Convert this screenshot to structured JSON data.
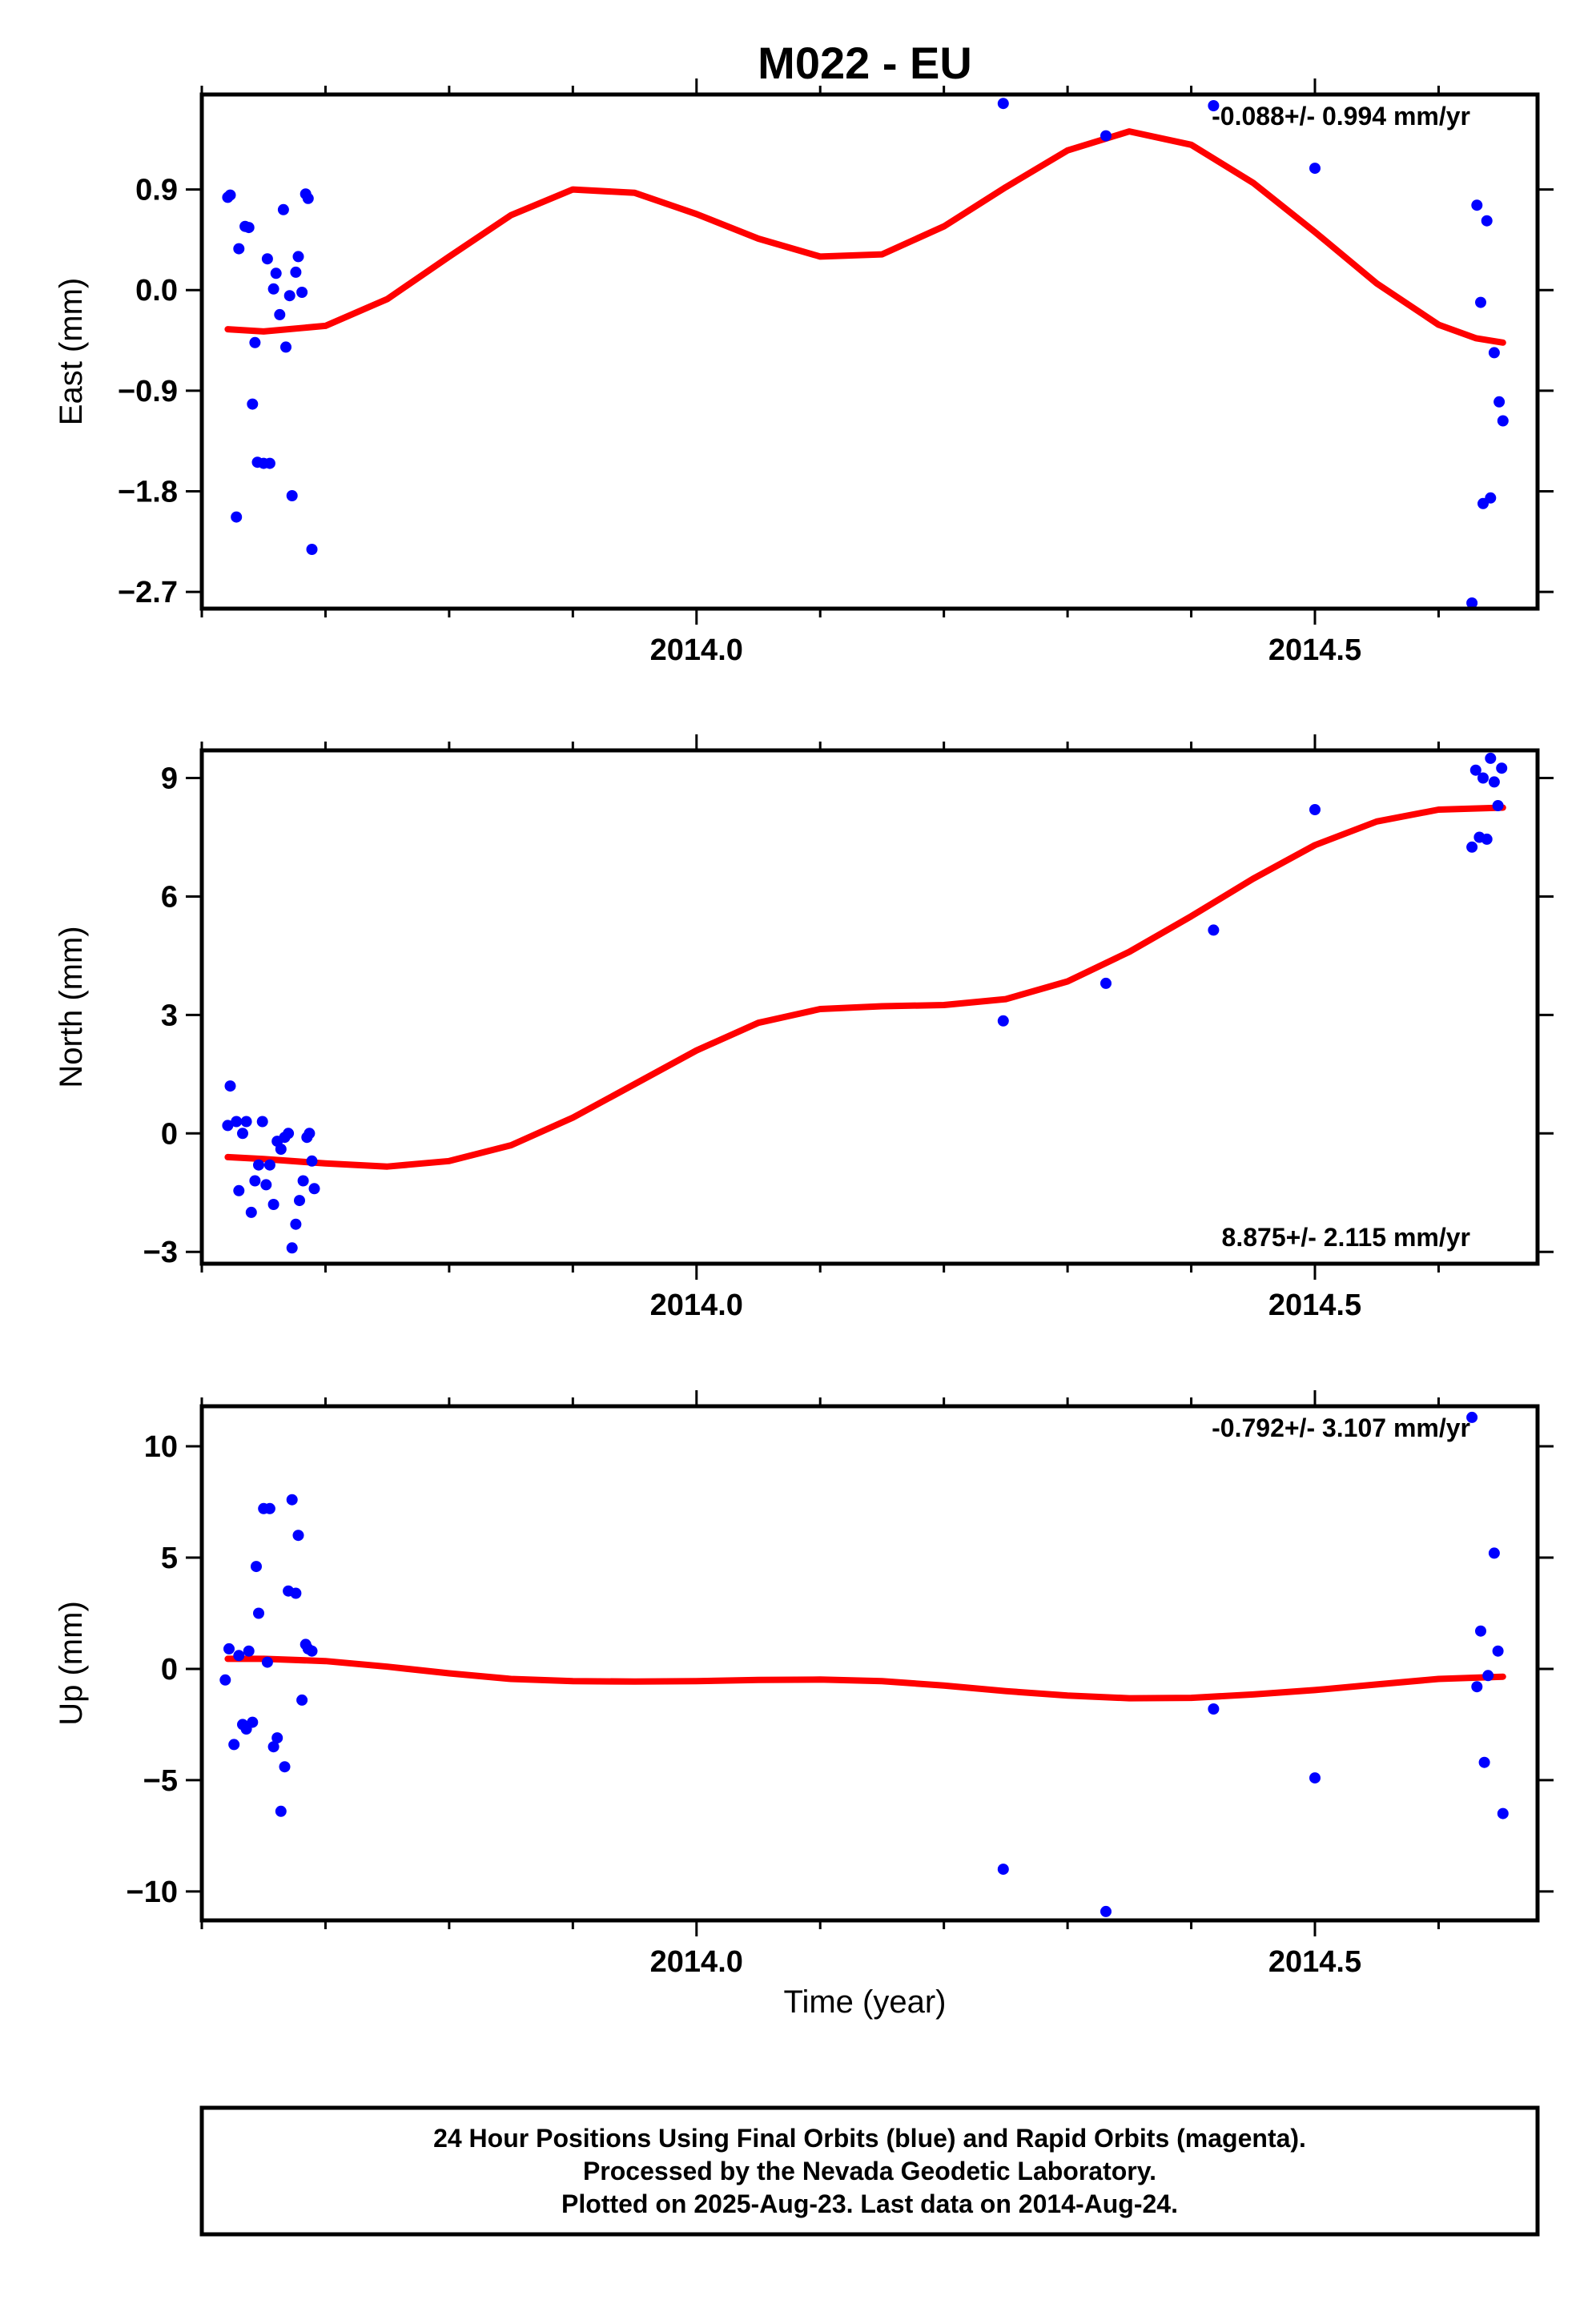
{
  "figure": {
    "title": "M022 - EU",
    "xlabel": "Time (year)",
    "footer_lines": [
      "24 Hour Positions Using Final Orbits (blue) and Rapid Orbits (magenta).",
      "Processed by the Nevada Geodetic Laboratory.",
      "Plotted on 2025-Aug-23. Last data on 2014-Aug-24."
    ]
  },
  "colors": {
    "points": "#0000ff",
    "fit": "#ff0000",
    "frame": "#000000"
  },
  "chart_data": [
    {
      "type": "scatter",
      "ylabel": "East (mm)",
      "rate_label": "-0.088+/- 0.994 mm/yr",
      "rate_position": "top-right",
      "xlim": [
        2013.6,
        2014.68
      ],
      "ylim": [
        -2.85,
        1.75
      ],
      "xticks": [
        2014.0,
        2014.5
      ],
      "xtick_labels": [
        "2014.0",
        "2014.5"
      ],
      "yticks": [
        0.9,
        0.0,
        -0.9,
        -1.8,
        -2.7
      ],
      "ytick_labels": [
        "0.9",
        "0.0",
        "−0.9",
        "−1.8",
        "−2.7"
      ],
      "points": [
        [
          2013.621,
          0.83
        ],
        [
          2013.623,
          0.85
        ],
        [
          2013.628,
          -2.03
        ],
        [
          2013.63,
          0.37
        ],
        [
          2013.635,
          0.57
        ],
        [
          2013.638,
          0.56
        ],
        [
          2013.641,
          -1.02
        ],
        [
          2013.643,
          -0.47
        ],
        [
          2013.645,
          -1.54
        ],
        [
          2013.65,
          -1.55
        ],
        [
          2013.653,
          0.28
        ],
        [
          2013.655,
          -1.55
        ],
        [
          2013.658,
          0.01
        ],
        [
          2013.66,
          0.15
        ],
        [
          2013.663,
          -0.22
        ],
        [
          2013.666,
          0.72
        ],
        [
          2013.668,
          -0.51
        ],
        [
          2013.671,
          -0.05
        ],
        [
          2013.673,
          -1.84
        ],
        [
          2013.676,
          0.16
        ],
        [
          2013.678,
          0.3
        ],
        [
          2013.681,
          -0.02
        ],
        [
          2013.684,
          0.86
        ],
        [
          2013.686,
          0.82
        ],
        [
          2013.689,
          -2.32
        ],
        [
          2014.248,
          1.67
        ],
        [
          2014.331,
          1.38
        ],
        [
          2014.418,
          1.65
        ],
        [
          2014.5,
          1.09
        ],
        [
          2014.627,
          -2.8
        ],
        [
          2014.631,
          0.76
        ],
        [
          2014.634,
          -0.11
        ],
        [
          2014.636,
          -1.91
        ],
        [
          2014.639,
          0.62
        ],
        [
          2014.642,
          -1.86
        ],
        [
          2014.645,
          -0.56
        ],
        [
          2014.649,
          -1.0
        ],
        [
          2014.652,
          -1.17
        ]
      ],
      "fit": [
        [
          2013.621,
          -0.35
        ],
        [
          2013.65,
          -0.37
        ],
        [
          2013.7,
          -0.32
        ],
        [
          2013.75,
          -0.08
        ],
        [
          2013.8,
          0.3
        ],
        [
          2013.85,
          0.67
        ],
        [
          2013.9,
          0.9
        ],
        [
          2013.95,
          0.87
        ],
        [
          2014.0,
          0.68
        ],
        [
          2014.05,
          0.46
        ],
        [
          2014.1,
          0.3
        ],
        [
          2014.15,
          0.32
        ],
        [
          2014.2,
          0.57
        ],
        [
          2014.25,
          0.92
        ],
        [
          2014.3,
          1.25
        ],
        [
          2014.35,
          1.42
        ],
        [
          2014.4,
          1.3
        ],
        [
          2014.45,
          0.96
        ],
        [
          2014.5,
          0.52
        ],
        [
          2014.55,
          0.06
        ],
        [
          2014.6,
          -0.31
        ],
        [
          2014.63,
          -0.43
        ],
        [
          2014.652,
          -0.47
        ]
      ]
    },
    {
      "type": "scatter",
      "ylabel": "North (mm)",
      "rate_label": "8.875+/- 2.115 mm/yr",
      "rate_position": "bottom-right",
      "xlim": [
        2013.6,
        2014.68
      ],
      "ylim": [
        -3.3,
        9.7
      ],
      "xticks": [
        2014.0,
        2014.5
      ],
      "xtick_labels": [
        "2014.0",
        "2014.5"
      ],
      "yticks": [
        9,
        6,
        3,
        0,
        -3
      ],
      "ytick_labels": [
        "9",
        "6",
        "3",
        "0",
        "−3"
      ],
      "points": [
        [
          2013.621,
          0.2
        ],
        [
          2013.623,
          1.2
        ],
        [
          2013.628,
          0.3
        ],
        [
          2013.63,
          -1.45
        ],
        [
          2013.633,
          0.0
        ],
        [
          2013.636,
          0.3
        ],
        [
          2013.64,
          -2.0
        ],
        [
          2013.643,
          -1.2
        ],
        [
          2013.646,
          -0.8
        ],
        [
          2013.649,
          0.3
        ],
        [
          2013.652,
          -1.3
        ],
        [
          2013.655,
          -0.8
        ],
        [
          2013.658,
          -1.8
        ],
        [
          2013.661,
          -0.2
        ],
        [
          2013.664,
          -0.4
        ],
        [
          2013.667,
          -0.1
        ],
        [
          2013.67,
          0.0
        ],
        [
          2013.673,
          -2.9
        ],
        [
          2013.676,
          -2.3
        ],
        [
          2013.679,
          -1.7
        ],
        [
          2013.682,
          -1.2
        ],
        [
          2013.685,
          -0.1
        ],
        [
          2013.687,
          0.0
        ],
        [
          2013.689,
          -0.7
        ],
        [
          2013.691,
          -1.4
        ],
        [
          2014.248,
          2.85
        ],
        [
          2014.331,
          3.8
        ],
        [
          2014.418,
          5.15
        ],
        [
          2014.5,
          8.2
        ],
        [
          2014.627,
          7.25
        ],
        [
          2014.63,
          9.2
        ],
        [
          2014.633,
          7.5
        ],
        [
          2014.636,
          9.0
        ],
        [
          2014.639,
          7.45
        ],
        [
          2014.642,
          9.5
        ],
        [
          2014.645,
          8.9
        ],
        [
          2014.648,
          8.3
        ],
        [
          2014.651,
          9.25
        ]
      ],
      "fit": [
        [
          2013.621,
          -0.6
        ],
        [
          2013.65,
          -0.65
        ],
        [
          2013.7,
          -0.76
        ],
        [
          2013.75,
          -0.84
        ],
        [
          2013.8,
          -0.7
        ],
        [
          2013.85,
          -0.3
        ],
        [
          2013.9,
          0.4
        ],
        [
          2013.95,
          1.25
        ],
        [
          2014.0,
          2.1
        ],
        [
          2014.05,
          2.8
        ],
        [
          2014.1,
          3.15
        ],
        [
          2014.15,
          3.22
        ],
        [
          2014.2,
          3.25
        ],
        [
          2014.25,
          3.4
        ],
        [
          2014.3,
          3.85
        ],
        [
          2014.35,
          4.6
        ],
        [
          2014.4,
          5.5
        ],
        [
          2014.45,
          6.45
        ],
        [
          2014.5,
          7.3
        ],
        [
          2014.55,
          7.9
        ],
        [
          2014.6,
          8.2
        ],
        [
          2014.652,
          8.25
        ]
      ]
    },
    {
      "type": "scatter",
      "ylabel": "Up (mm)",
      "rate_label": "-0.792+/- 3.107 mm/yr",
      "rate_position": "top-right",
      "xlim": [
        2013.6,
        2014.68
      ],
      "ylim": [
        -11.3,
        11.8
      ],
      "xticks": [
        2014.0,
        2014.5
      ],
      "xtick_labels": [
        "2014.0",
        "2014.5"
      ],
      "yticks": [
        10,
        5,
        0,
        -5,
        -10
      ],
      "ytick_labels": [
        "10",
        "5",
        "0",
        "−5",
        "−10"
      ],
      "points": [
        [
          2013.619,
          -0.5
        ],
        [
          2013.622,
          0.9
        ],
        [
          2013.626,
          -3.4
        ],
        [
          2013.63,
          0.6
        ],
        [
          2013.633,
          -2.5
        ],
        [
          2013.636,
          -2.7
        ],
        [
          2013.638,
          0.8
        ],
        [
          2013.641,
          -2.4
        ],
        [
          2013.644,
          4.6
        ],
        [
          2013.646,
          2.5
        ],
        [
          2013.65,
          7.2
        ],
        [
          2013.653,
          0.3
        ],
        [
          2013.655,
          7.2
        ],
        [
          2013.658,
          -3.5
        ],
        [
          2013.661,
          -3.1
        ],
        [
          2013.664,
          -6.4
        ],
        [
          2013.667,
          -4.4
        ],
        [
          2013.67,
          3.5
        ],
        [
          2013.673,
          7.6
        ],
        [
          2013.676,
          3.4
        ],
        [
          2013.678,
          6.0
        ],
        [
          2013.681,
          -1.4
        ],
        [
          2013.684,
          1.1
        ],
        [
          2013.686,
          0.9
        ],
        [
          2013.689,
          0.8
        ],
        [
          2014.248,
          -9.0
        ],
        [
          2014.331,
          -10.9
        ],
        [
          2014.418,
          -1.8
        ],
        [
          2014.5,
          -4.9
        ],
        [
          2014.627,
          11.3
        ],
        [
          2014.631,
          -0.8
        ],
        [
          2014.634,
          1.7
        ],
        [
          2014.637,
          -4.2
        ],
        [
          2014.64,
          -0.3
        ],
        [
          2014.645,
          5.2
        ],
        [
          2014.648,
          0.8
        ],
        [
          2014.652,
          -6.5
        ]
      ],
      "fit": [
        [
          2013.621,
          0.45
        ],
        [
          2013.65,
          0.45
        ],
        [
          2013.7,
          0.35
        ],
        [
          2013.75,
          0.1
        ],
        [
          2013.8,
          -0.2
        ],
        [
          2013.85,
          -0.45
        ],
        [
          2013.9,
          -0.55
        ],
        [
          2013.95,
          -0.57
        ],
        [
          2014.0,
          -0.55
        ],
        [
          2014.05,
          -0.5
        ],
        [
          2014.1,
          -0.48
        ],
        [
          2014.15,
          -0.55
        ],
        [
          2014.2,
          -0.75
        ],
        [
          2014.25,
          -1.0
        ],
        [
          2014.3,
          -1.2
        ],
        [
          2014.35,
          -1.32
        ],
        [
          2014.4,
          -1.3
        ],
        [
          2014.45,
          -1.15
        ],
        [
          2014.5,
          -0.95
        ],
        [
          2014.55,
          -0.7
        ],
        [
          2014.6,
          -0.45
        ],
        [
          2014.652,
          -0.35
        ]
      ]
    }
  ]
}
